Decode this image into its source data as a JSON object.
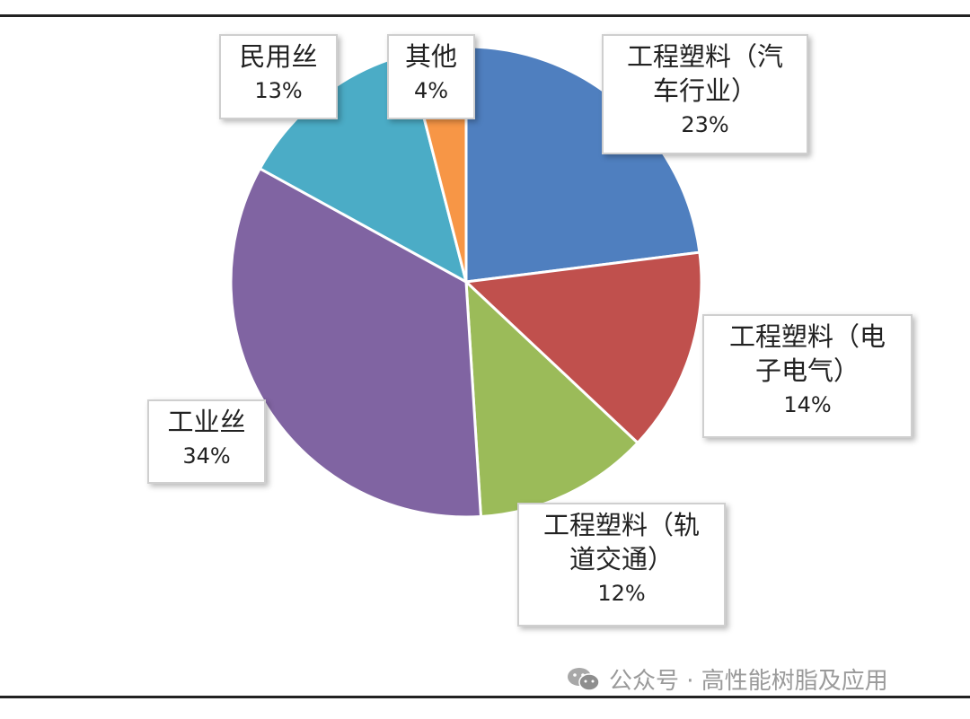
{
  "chart_data": {
    "type": "pie",
    "start_angle_deg": 0,
    "direction": "clockwise",
    "slices": [
      {
        "label": "工程塑料（汽车行业）",
        "label_lines": [
          "工程塑料（汽",
          "车行业）"
        ],
        "value": 23,
        "pct_label": "23%",
        "color": "#4f7fbf"
      },
      {
        "label": "工程塑料（电子电气）",
        "label_lines": [
          "工程塑料（电",
          "子电气）"
        ],
        "value": 14,
        "pct_label": "14%",
        "color": "#c0504d"
      },
      {
        "label": "工程塑料（轨道交通）",
        "label_lines": [
          "工程塑料（轨",
          "道交通）"
        ],
        "value": 12,
        "pct_label": "12%",
        "color": "#9bbb59"
      },
      {
        "label": "工业丝",
        "label_lines": [
          "工业丝"
        ],
        "value": 34,
        "pct_label": "34%",
        "color": "#8064a2"
      },
      {
        "label": "民用丝",
        "label_lines": [
          "民用丝"
        ],
        "value": 13,
        "pct_label": "13%",
        "color": "#4bacc6"
      },
      {
        "label": "其他",
        "label_lines": [
          "其他"
        ],
        "value": 4,
        "pct_label": "4%",
        "color": "#f79646"
      }
    ]
  },
  "watermark": {
    "text": "公众号 · 高性能树脂及应用",
    "icon": "wechat-icon"
  }
}
